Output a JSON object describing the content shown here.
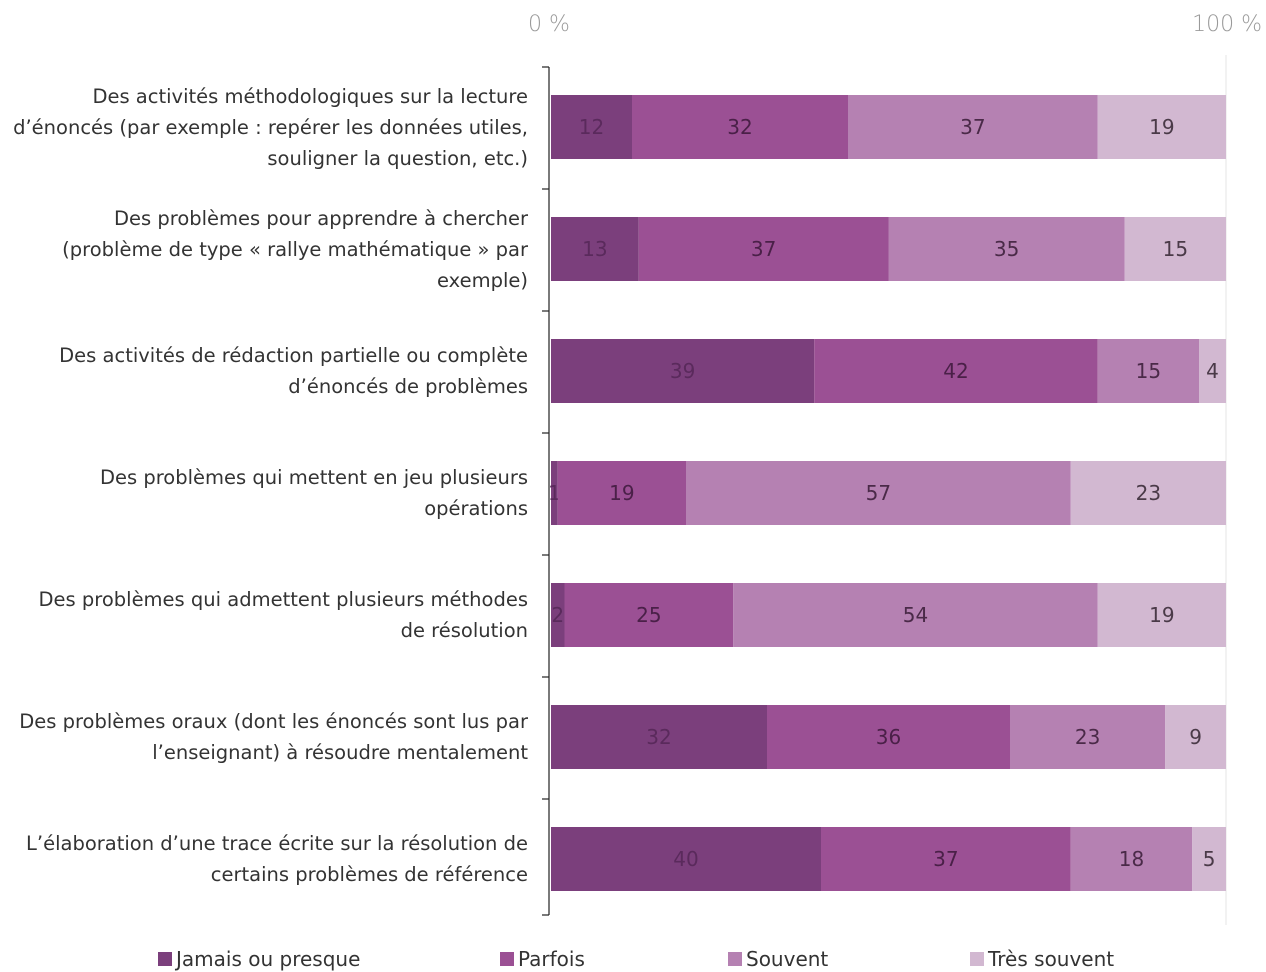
{
  "chart_data": {
    "type": "bar",
    "orientation": "horizontal",
    "stacked": true,
    "axis": {
      "min_label": "0 %",
      "max_label": "100 %",
      "xlim": [
        0,
        100
      ]
    },
    "categories": [
      "Des activités méthodologiques sur la lecture d’énoncés (par exemple : repérer les données utiles, souligner la question, etc.)",
      "Des problèmes pour apprendre à chercher (problème de type « rallye mathématique » par exemple)",
      "Des activités de rédaction partielle ou complète d’énoncés de problèmes",
      "Des problèmes qui mettent en jeu plusieurs opérations",
      "Des problèmes qui admettent plusieurs méthodes de résolution",
      "Des problèmes oraux (dont les énoncés sont lus par l’enseignant) à résoudre mentalement",
      "L’élaboration d’une trace écrite sur la résolution de certains problèmes de référence"
    ],
    "series": [
      {
        "name": "Jamais ou presque",
        "color": "#7b3f7c",
        "label_color": "#5a2a5c",
        "values": [
          12,
          13,
          39,
          1,
          2,
          32,
          40
        ]
      },
      {
        "name": "Parfois",
        "color": "#9b5094",
        "label_color": "#4a2048",
        "values": [
          32,
          37,
          42,
          19,
          25,
          36,
          37
        ]
      },
      {
        "name": "Souvent",
        "color": "#b581b2",
        "label_color": "#4a2a48",
        "values": [
          37,
          35,
          15,
          57,
          54,
          23,
          18
        ]
      },
      {
        "name": "Très souvent",
        "color": "#d2b8d1",
        "label_color": "#4a3a48",
        "values": [
          19,
          15,
          4,
          23,
          19,
          9,
          5
        ]
      }
    ],
    "legend_placement": "bottom",
    "grid": false
  }
}
